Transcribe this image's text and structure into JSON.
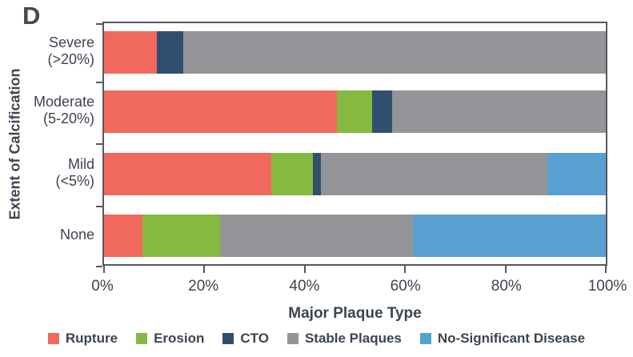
{
  "panel_label": "D",
  "colors": {
    "axis": "#55585c",
    "text": "#3b4550",
    "rupture": "#f0695c",
    "erosion": "#86b93f",
    "cto": "#2f4f6d",
    "stable_plaques": "#949598",
    "no_significant_disease": "#58a0d2"
  },
  "chart_data": {
    "type": "bar",
    "orientation": "horizontal-stacked",
    "title": "",
    "xlabel": "Major Plaque Type",
    "ylabel": "Extent of Calcification",
    "xlim": [
      0,
      100
    ],
    "x_ticks": [
      "0%",
      "20%",
      "40%",
      "60%",
      "80%",
      "100%"
    ],
    "x_tick_values": [
      0,
      20,
      40,
      60,
      80,
      100
    ],
    "grid": false,
    "legend_position": "bottom",
    "categories": [
      "Severe\n(>20%)",
      "Moderate\n(5-20%)",
      "Mild\n(<5%)",
      "None"
    ],
    "series": [
      {
        "name": "Rupture",
        "color": "#f0695c",
        "values": [
          10.5,
          46.4,
          33.3,
          7.7
        ]
      },
      {
        "name": "Erosion",
        "color": "#86b93f",
        "values": [
          0,
          7.1,
          8.4,
          15.4
        ]
      },
      {
        "name": "CTO",
        "color": "#2f4f6d",
        "values": [
          5.3,
          3.9,
          1.6,
          0
        ]
      },
      {
        "name": "Stable Plaques",
        "color": "#949598",
        "values": [
          84.2,
          42.6,
          45.0,
          38.5
        ]
      },
      {
        "name": "No-Significant Disease",
        "color": "#58a0d2",
        "values": [
          0,
          0,
          11.7,
          38.4
        ]
      }
    ]
  }
}
